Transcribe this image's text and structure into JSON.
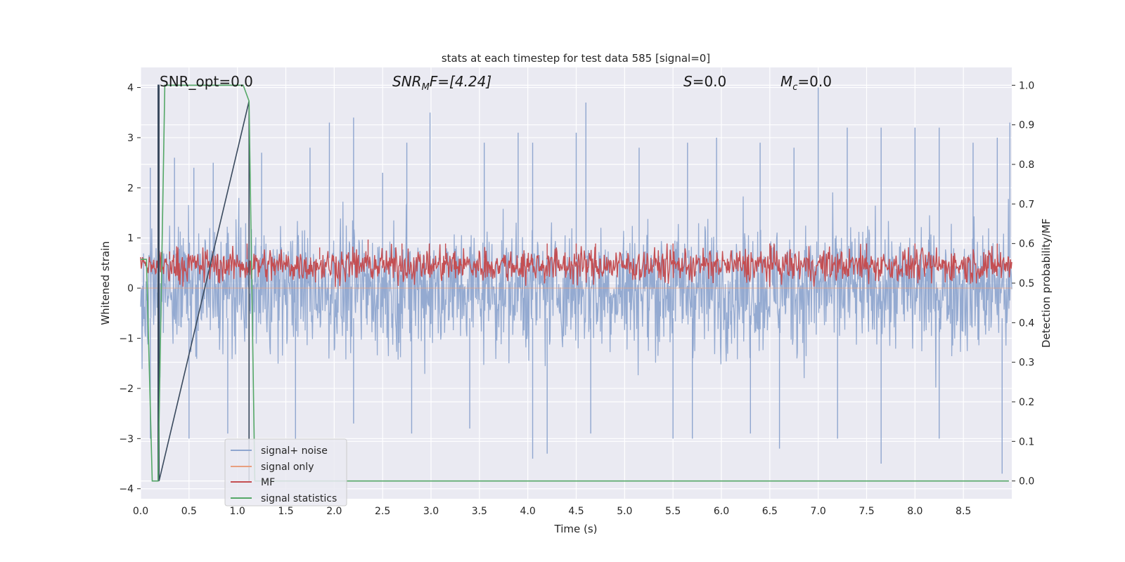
{
  "chart_data": {
    "type": "line",
    "title": "stats at each timestep for test data 585 [signal=0]",
    "xlabel": "Time (s)",
    "ylabel": "Whitened strain",
    "y2label": "Detection probability/MF",
    "xlim": [
      0.0,
      9.0
    ],
    "ylim": [
      -4.2,
      4.4
    ],
    "y2lim": [
      -0.045,
      1.045
    ],
    "xticks": [
      "0.0",
      "0.5",
      "1.0",
      "1.5",
      "2.0",
      "2.5",
      "3.0",
      "3.5",
      "4.0",
      "4.5",
      "5.0",
      "5.5",
      "6.0",
      "6.5",
      "7.0",
      "7.5",
      "8.0",
      "8.5"
    ],
    "yticks": [
      "4",
      "3",
      "2",
      "1",
      "0",
      "−1",
      "−2",
      "−3",
      "−4"
    ],
    "y2ticks": [
      "1.0",
      "0.9",
      "0.8",
      "0.7",
      "0.6",
      "0.5",
      "0.4",
      "0.3",
      "0.2",
      "0.1",
      "0.0"
    ],
    "grid": true,
    "legend_position": "lower-left",
    "annotations": {
      "snr_opt": "SNR_opt=0.0",
      "snr_mf_sym": "SNR",
      "snr_mf_sub": "M",
      "snr_mf_rest": "F=[4.24]",
      "s_sym": "S",
      "s_rest": "=0.0",
      "mc_sym": "M",
      "mc_sub": "c",
      "mc_rest": "=0.0"
    },
    "series": [
      {
        "name": "signal+ noise",
        "color": "#8fa6cf",
        "axis": "left",
        "envelope": "dense whitened noise, approx. between -3.5 and 4.0",
        "peaks": [
          [
            0.1,
            2.4
          ],
          [
            0.35,
            2.6
          ],
          [
            0.55,
            2.4
          ],
          [
            0.75,
            2.5
          ],
          [
            1.25,
            2.7
          ],
          [
            1.75,
            2.8
          ],
          [
            1.95,
            3.3
          ],
          [
            2.2,
            3.4
          ],
          [
            2.5,
            2.3
          ],
          [
            2.75,
            2.9
          ],
          [
            2.99,
            3.5
          ],
          [
            3.55,
            2.9
          ],
          [
            3.9,
            3.1
          ],
          [
            4.05,
            2.9
          ],
          [
            4.5,
            3.1
          ],
          [
            4.6,
            3.7
          ],
          [
            5.15,
            2.8
          ],
          [
            5.65,
            2.9
          ],
          [
            5.95,
            3.0
          ],
          [
            6.4,
            2.9
          ],
          [
            6.75,
            2.8
          ],
          [
            7.0,
            4.0
          ],
          [
            7.3,
            3.2
          ],
          [
            7.65,
            3.2
          ],
          [
            8.0,
            3.2
          ],
          [
            8.25,
            3.2
          ],
          [
            8.6,
            2.9
          ],
          [
            8.85,
            3.0
          ],
          [
            8.98,
            3.3
          ]
        ],
        "troughs": [
          [
            0.1,
            -3.0
          ],
          [
            0.5,
            -3.0
          ],
          [
            0.9,
            -2.9
          ],
          [
            1.6,
            -3.0
          ],
          [
            2.2,
            -2.7
          ],
          [
            2.8,
            -2.9
          ],
          [
            3.4,
            -2.8
          ],
          [
            4.05,
            -3.4
          ],
          [
            4.2,
            -3.3
          ],
          [
            4.65,
            -2.9
          ],
          [
            5.5,
            -3.0
          ],
          [
            5.7,
            -3.0
          ],
          [
            6.3,
            -2.9
          ],
          [
            6.6,
            -3.2
          ],
          [
            7.2,
            -3.0
          ],
          [
            7.65,
            -3.5
          ],
          [
            8.25,
            -3.0
          ],
          [
            8.9,
            -3.7
          ]
        ]
      },
      {
        "name": "signal only",
        "color": "#e8a07f",
        "axis": "left",
        "values": "0 throughout"
      },
      {
        "name": "MF",
        "color": "#c44e52",
        "axis": "right",
        "band": [
          0.49,
          0.6
        ],
        "peaks": [
          [
            0.3,
            0.58
          ],
          [
            1.1,
            0.6
          ],
          [
            1.85,
            0.59
          ],
          [
            2.35,
            0.61
          ],
          [
            2.7,
            0.6
          ],
          [
            3.15,
            0.6
          ],
          [
            4.2,
            0.6
          ],
          [
            4.5,
            0.6
          ],
          [
            4.7,
            0.6
          ],
          [
            5.5,
            0.6
          ],
          [
            6.5,
            0.6
          ],
          [
            7.5,
            0.6
          ],
          [
            8.0,
            0.6
          ],
          [
            8.85,
            0.6
          ]
        ]
      },
      {
        "name": "signal statistics",
        "color": "#55a868",
        "axis": "right",
        "x": [
          0.0,
          0.06,
          0.12,
          0.18,
          0.25,
          0.3,
          1.0,
          1.06,
          1.12,
          1.18,
          1.25,
          8.97
        ],
        "y": [
          0.56,
          0.56,
          0.0,
          0.0,
          1.0,
          1.0,
          1.0,
          1.0,
          0.96,
          0.0,
          0.0,
          0.0
        ]
      },
      {
        "color": "#3a4a5e",
        "axis": "right",
        "x": [
          0.18,
          0.18,
          0.19,
          0.19,
          1.12,
          1.12
        ],
        "y": [
          0.0,
          1.0,
          1.0,
          0.0,
          0.96,
          0.0
        ]
      }
    ]
  }
}
